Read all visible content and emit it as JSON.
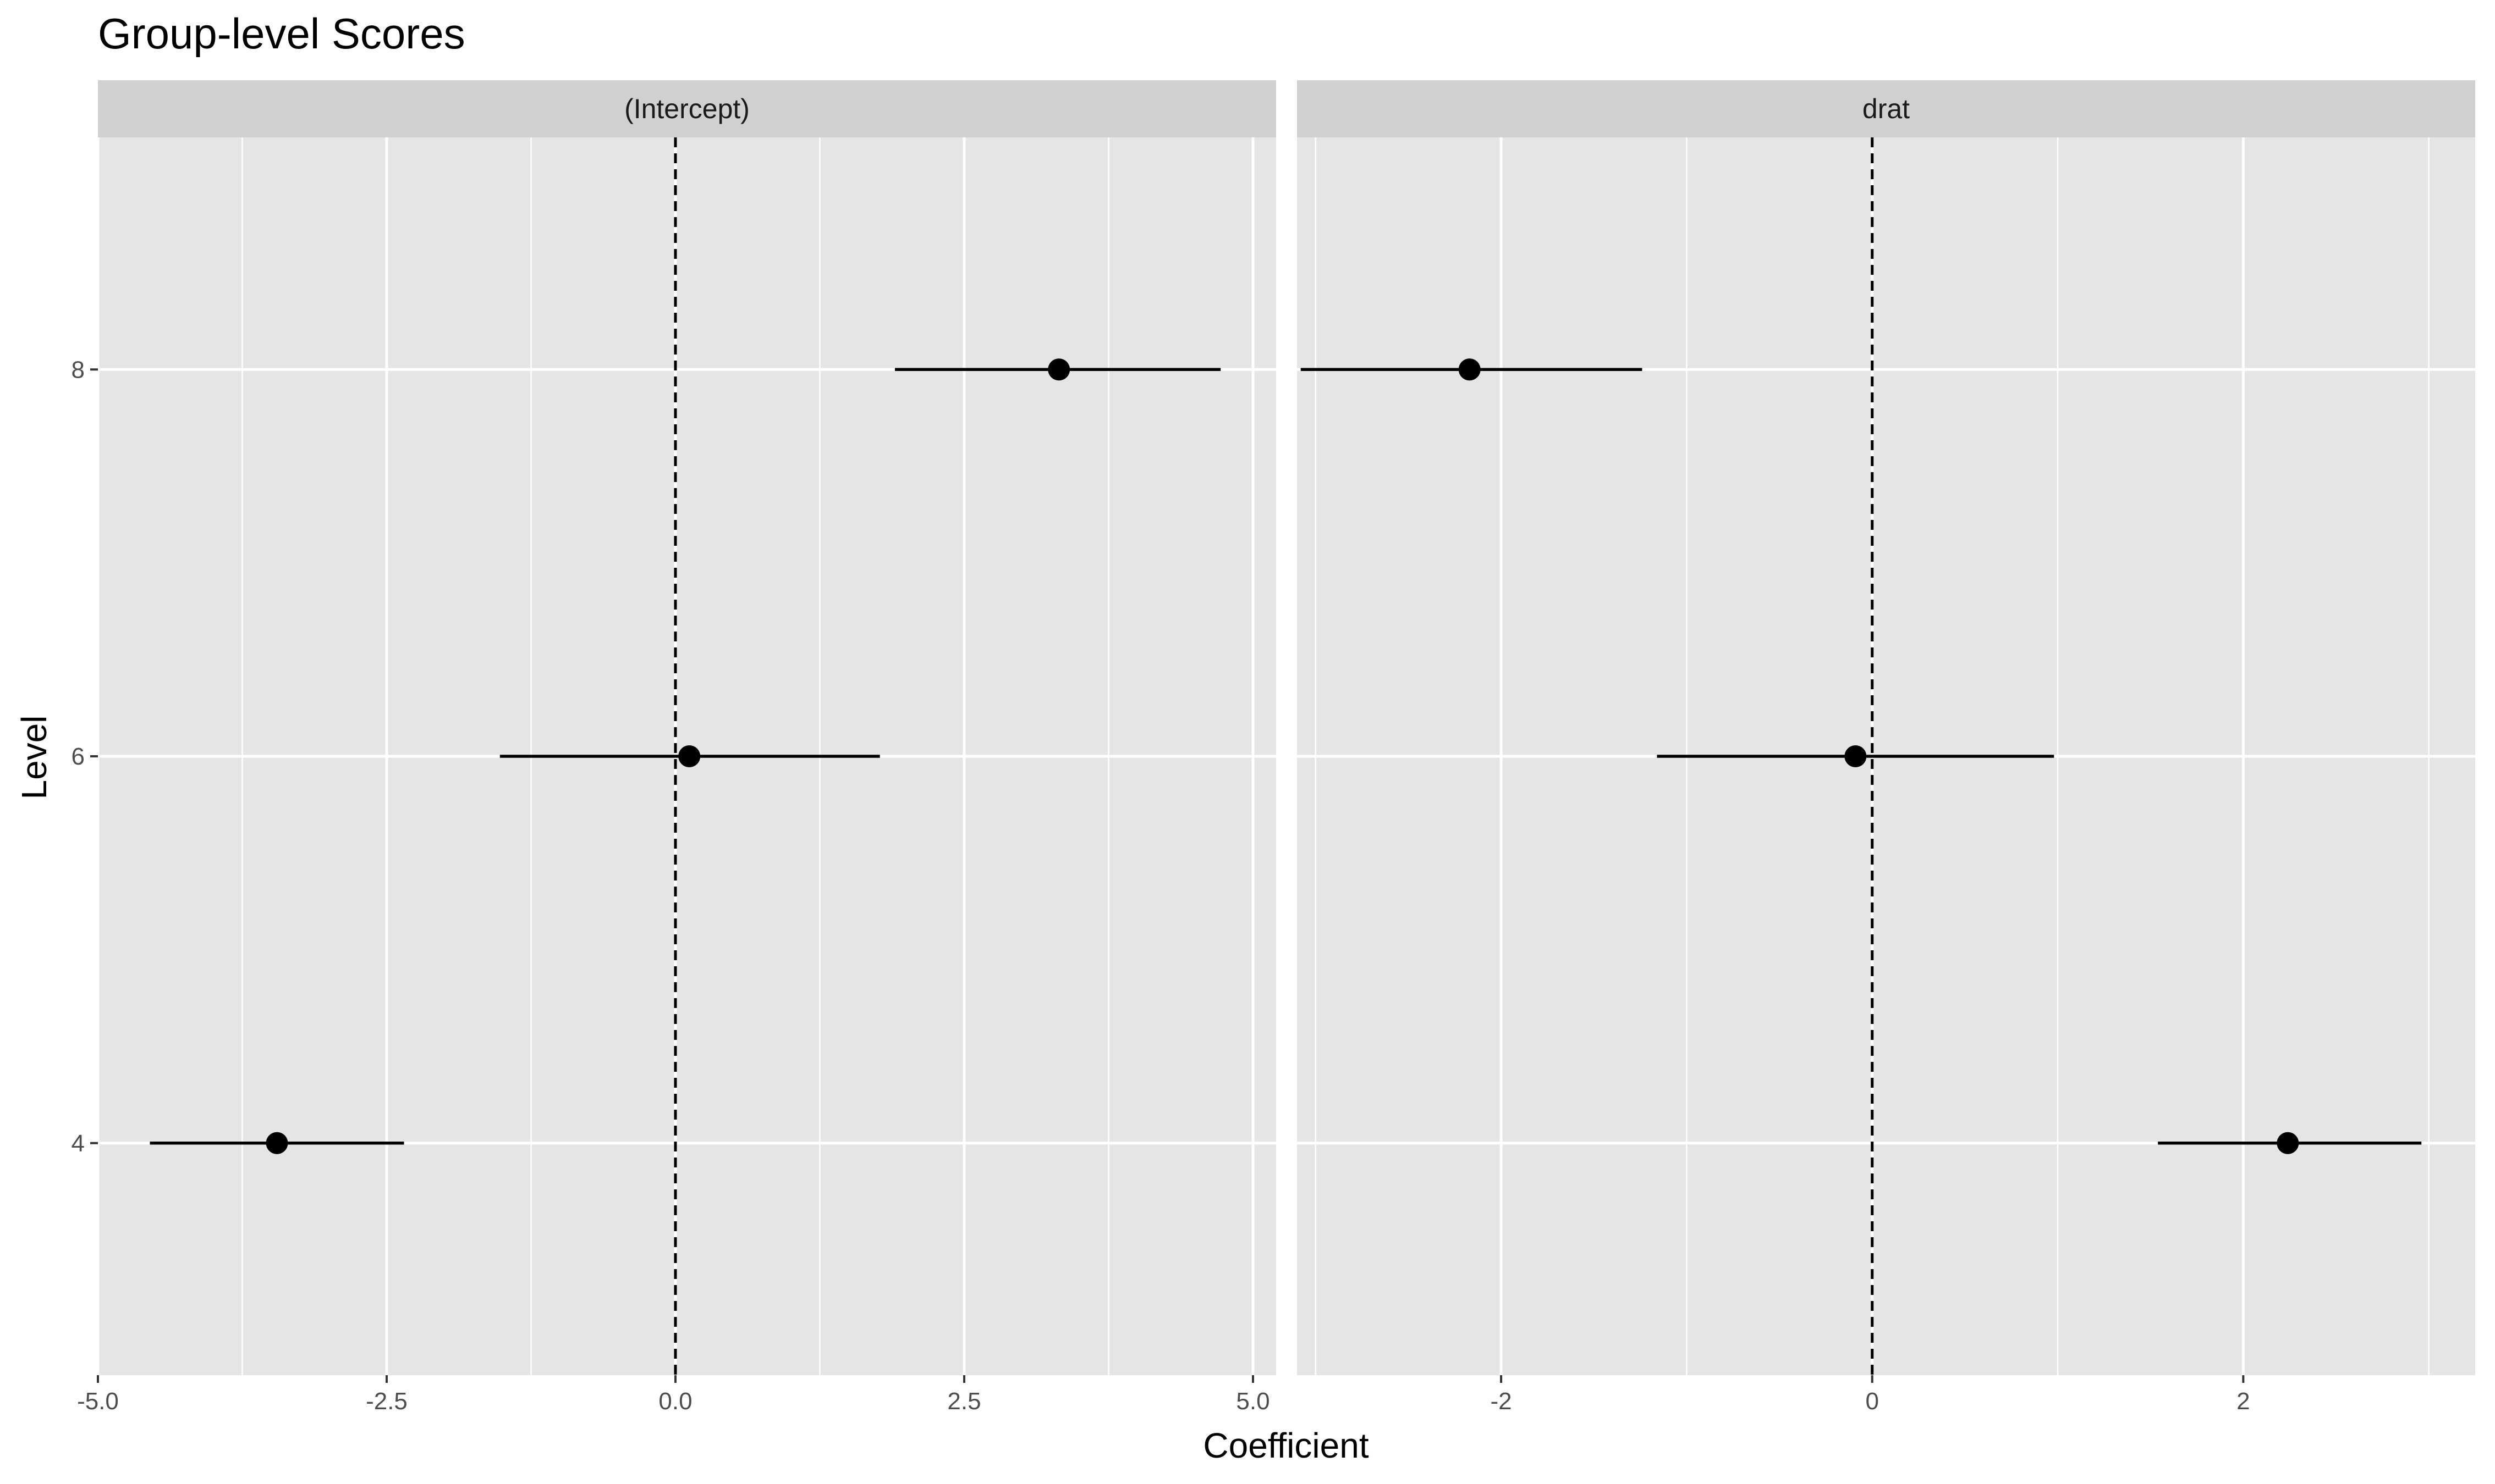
{
  "chart_data": {
    "type": "scatter",
    "title": "Group-level Scores",
    "xlabel": "Coefficient",
    "ylabel": "Level",
    "grid": true,
    "legend": "none",
    "y_ticks": [
      4,
      6,
      8
    ],
    "ylim": [
      2.8,
      9.2
    ],
    "reference_line": {
      "x": 0,
      "style": "dashed"
    },
    "colors": {
      "panel": "#e5e5e5",
      "strip": "#d0d0d0",
      "grid": "#ffffff",
      "mark": "#000000",
      "tick_text": "#4d4d4d"
    },
    "panels": [
      {
        "label": "(Intercept)",
        "xlim": [
          -5.0,
          5.2
        ],
        "x_ticks": [
          -5.0,
          -2.5,
          0.0,
          2.5,
          5.0
        ],
        "x_tick_labels": [
          "-5.0",
          "-2.5",
          "0.0",
          "2.5",
          "5.0"
        ],
        "x_minor": [
          -3.75,
          -1.25,
          1.25,
          3.75
        ],
        "points": [
          {
            "level": 8,
            "estimate": 3.32,
            "lower": 1.9,
            "upper": 4.72
          },
          {
            "level": 6,
            "estimate": 0.12,
            "lower": -1.52,
            "upper": 1.77
          },
          {
            "level": 4,
            "estimate": -3.45,
            "lower": -4.55,
            "upper": -2.35
          }
        ]
      },
      {
        "label": "drat",
        "xlim": [
          -3.1,
          3.25
        ],
        "x_ticks": [
          -2,
          0,
          2
        ],
        "x_tick_labels": [
          "-2",
          "0",
          "2"
        ],
        "x_minor": [
          -3,
          -1,
          1,
          3
        ],
        "points": [
          {
            "level": 8,
            "estimate": -2.17,
            "lower": -3.08,
            "upper": -1.24
          },
          {
            "level": 6,
            "estimate": -0.09,
            "lower": -1.16,
            "upper": 0.98
          },
          {
            "level": 4,
            "estimate": 2.24,
            "lower": 1.54,
            "upper": 2.96
          }
        ]
      }
    ]
  }
}
